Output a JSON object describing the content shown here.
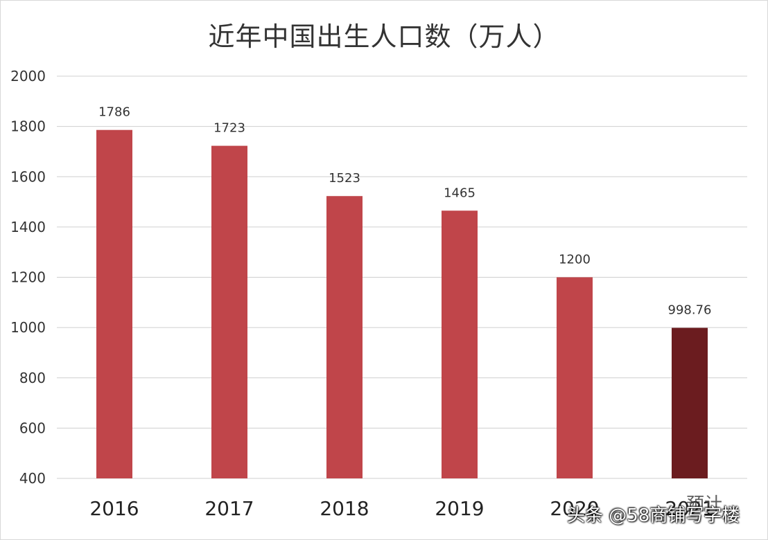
{
  "chart_data": {
    "type": "bar",
    "title": "近年中国出生人口数（万人）",
    "categories": [
      "2016",
      "2017",
      "2018",
      "2019",
      "2020",
      "2021"
    ],
    "values": [
      1786,
      1723,
      1523,
      1465,
      1200,
      998.76
    ],
    "data_labels": [
      "1786",
      "1723",
      "1523",
      "1465",
      "1200",
      "998.76"
    ],
    "colors": [
      "#c0454a",
      "#c0454a",
      "#c0454a",
      "#c0454a",
      "#c0454a",
      "#6b1c1f"
    ],
    "ylim": [
      400,
      2000
    ],
    "yticks": [
      400,
      600,
      800,
      1000,
      1200,
      1400,
      1600,
      1800,
      2000
    ],
    "grid": true,
    "last_bar_note": "预计"
  },
  "watermark": "头条 @58商铺写字楼"
}
